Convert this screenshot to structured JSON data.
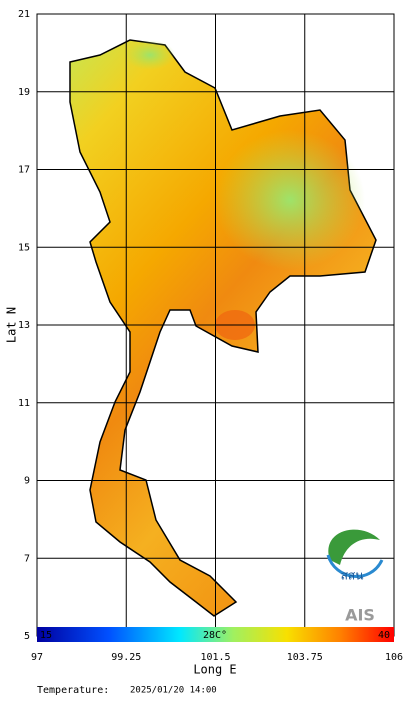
{
  "map": {
    "xlim": [
      97,
      106
    ],
    "ylim": [
      5,
      21
    ],
    "xticks": [
      97,
      99.25,
      101.5,
      103.75,
      106
    ],
    "yticks": [
      21,
      19,
      17,
      15,
      13,
      11,
      9,
      7,
      5
    ],
    "xlabel": "Long E",
    "ylabel": "Lat N",
    "colorbar": {
      "min_label": "15",
      "mid_label": "28C°",
      "max_label": "40"
    },
    "footer": {
      "label": "Temperature:",
      "datetime": "2025/01/20 14:00"
    },
    "logos": {
      "org": "สสน",
      "sponsor": "AIS"
    }
  }
}
